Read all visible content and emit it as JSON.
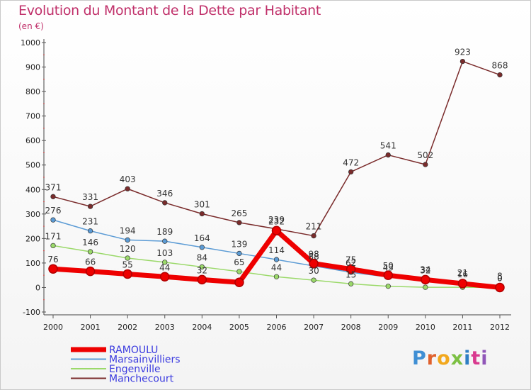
{
  "chart_data": {
    "type": "line",
    "title": "Evolution du Montant de la Dette par Habitant",
    "subtitle": "(en €)",
    "x": [
      "2000",
      "2001",
      "2002",
      "2003",
      "2004",
      "2005",
      "2006",
      "2007",
      "2008",
      "2009",
      "2010",
      "2011",
      "2012"
    ],
    "ylim": [
      -100,
      1000
    ],
    "yticks": [
      "-100",
      "0",
      "100",
      "200",
      "300",
      "400",
      "500",
      "600",
      "700",
      "800",
      "900",
      "1000"
    ],
    "grid": false,
    "legend_position": "bottom-left",
    "series": [
      {
        "name": "RAMOULU",
        "color": "#ee0000",
        "width": 7,
        "values": [
          76,
          66,
          55,
          44,
          32,
          21,
          232,
          98,
          75,
          50,
          32,
          16,
          0
        ],
        "labels": [
          "76",
          "66",
          "55",
          "44",
          "32",
          "",
          "232",
          "98",
          "75",
          "50",
          "32",
          "16",
          "0"
        ]
      },
      {
        "name": "Marsainvilliers",
        "color": "#5b9bd5",
        "width": 1.5,
        "values": [
          276,
          231,
          194,
          189,
          164,
          139,
          114,
          88,
          62,
          43,
          34,
          21,
          8
        ],
        "labels": [
          "276",
          "231",
          "194",
          "189",
          "164",
          "139",
          "114",
          "88",
          "62",
          "43",
          "34",
          "21",
          "8"
        ]
      },
      {
        "name": "Engenville",
        "color": "#9bd96a",
        "width": 1.5,
        "values": [
          171,
          146,
          120,
          103,
          84,
          65,
          44,
          30,
          15,
          5,
          1,
          1,
          0
        ],
        "labels": [
          "171",
          "146",
          "120",
          "103",
          "84",
          "65",
          "44",
          "30",
          "15",
          "",
          "",
          "",
          "0"
        ]
      },
      {
        "name": "Manchecourt",
        "color": "#7a2b2b",
        "width": 1.5,
        "values": [
          371,
          331,
          403,
          346,
          301,
          265,
          239,
          211,
          472,
          541,
          502,
          923,
          868
        ],
        "labels": [
          "371",
          "331",
          "403",
          "346",
          "301",
          "265",
          "239",
          "211",
          "472",
          "541",
          "502",
          "923",
          "868"
        ]
      }
    ]
  },
  "logo_text": "Proxiti"
}
